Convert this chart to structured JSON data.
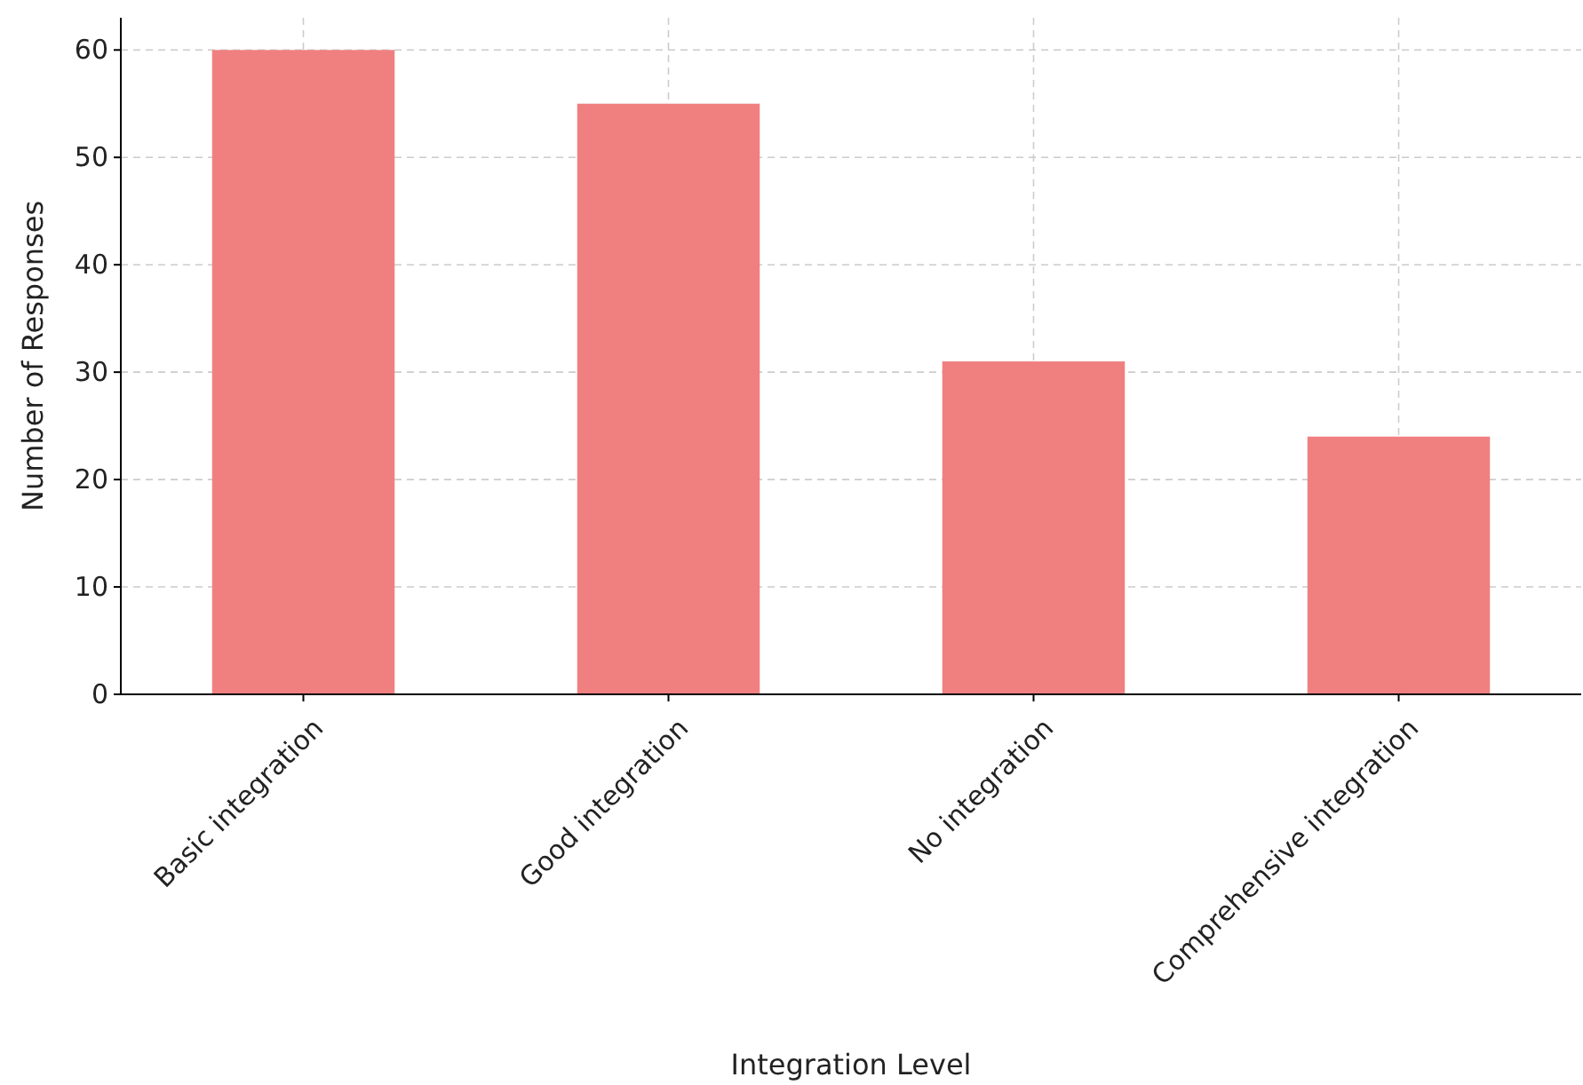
{
  "chart_data": {
    "type": "bar",
    "xlabel": "Integration Level",
    "ylabel": "Number of Responses",
    "categories": [
      "Basic integration",
      "Good integration",
      "No integration",
      "Comprehensive integration"
    ],
    "values": [
      60,
      55,
      31,
      24
    ],
    "color": "#f08080",
    "ylim": [
      0,
      63
    ],
    "yticks": [
      0,
      10,
      20,
      30,
      40,
      50,
      60
    ],
    "grid": true
  }
}
